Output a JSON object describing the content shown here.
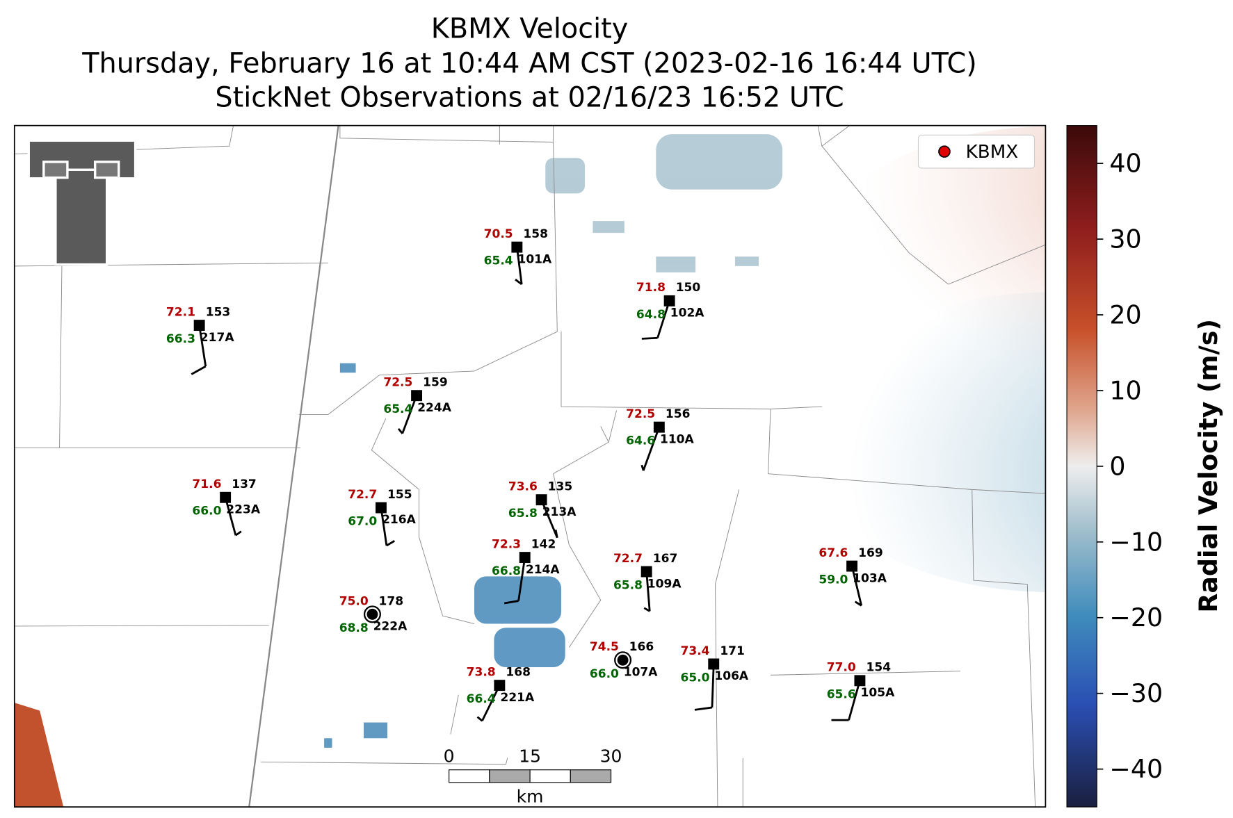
{
  "title_lines": [
    "KBMX Velocity",
    "Thursday, February 16 at 10:44 AM CST (2023-02-16 16:44 UTC)",
    "StickNet Observations at 02/16/23 16:52 UTC"
  ],
  "legend": {
    "label": "KBMX"
  },
  "stations": [
    {
      "id": "101A",
      "temperature": 70.5,
      "dewpoint": 65.4,
      "pressure": "158"
    },
    {
      "id": "102A",
      "temperature": 71.8,
      "dewpoint": 64.8,
      "pressure": "150"
    },
    {
      "id": "217A",
      "temperature": 72.1,
      "dewpoint": 66.3,
      "pressure": "153"
    },
    {
      "id": "224A",
      "temperature": 72.5,
      "dewpoint": 65.4,
      "pressure": "159"
    },
    {
      "id": "110A",
      "temperature": 72.5,
      "dewpoint": 64.6,
      "pressure": "156"
    },
    {
      "id": "223A",
      "temperature": 71.6,
      "dewpoint": 66.0,
      "pressure": "137"
    },
    {
      "id": "216A",
      "temperature": 72.7,
      "dewpoint": 67.0,
      "pressure": "155"
    },
    {
      "id": "213A",
      "temperature": 73.6,
      "dewpoint": 65.8,
      "pressure": "135"
    },
    {
      "id": "214A",
      "temperature": 72.3,
      "dewpoint": 66.8,
      "pressure": "142"
    },
    {
      "id": "109A",
      "temperature": 72.7,
      "dewpoint": 65.8,
      "pressure": "167"
    },
    {
      "id": "103A",
      "temperature": 67.6,
      "dewpoint": 59.0,
      "pressure": "169"
    },
    {
      "id": "222A",
      "temperature": 75.0,
      "dewpoint": 68.8,
      "pressure": "178"
    },
    {
      "id": "107A",
      "temperature": 74.5,
      "dewpoint": 66.0,
      "pressure": "166"
    },
    {
      "id": "106A",
      "temperature": 73.4,
      "dewpoint": 65.0,
      "pressure": "171"
    },
    {
      "id": "105A",
      "temperature": 77.0,
      "dewpoint": 65.6,
      "pressure": "154"
    },
    {
      "id": "221A",
      "temperature": 73.8,
      "dewpoint": 66.4,
      "pressure": "168"
    }
  ],
  "colorbar": {
    "label": "Radial Velocity (m/s)",
    "lim": [
      -45,
      45
    ],
    "ticks": [
      {
        "value": -40,
        "label": "−40"
      },
      {
        "value": -30,
        "label": "−30"
      },
      {
        "value": -20,
        "label": "−20"
      },
      {
        "value": -10,
        "label": "−10"
      },
      0,
      10,
      20,
      30,
      40
    ]
  },
  "scale_bar": {
    "ticks": [
      0,
      15,
      30
    ],
    "unit": "km"
  }
}
